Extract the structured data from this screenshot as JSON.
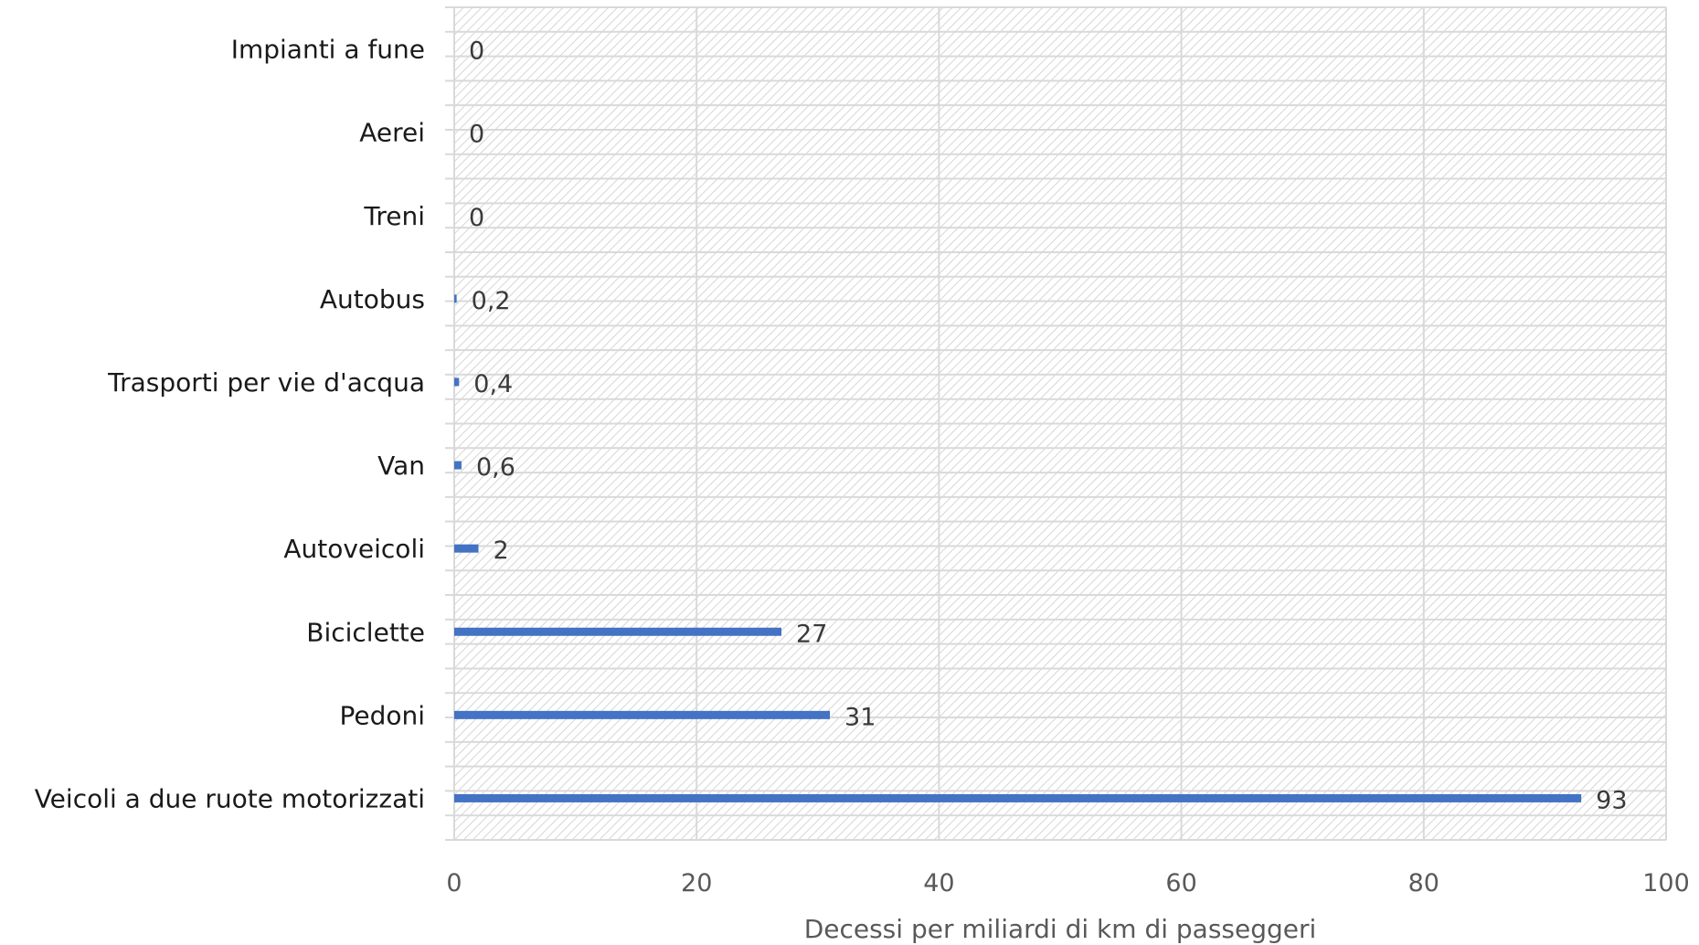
{
  "chart_data": {
    "type": "bar",
    "orientation": "horizontal",
    "categories": [
      "Veicoli a due ruote motorizzati",
      "Pedoni",
      "Biciclette",
      "Autoveicoli",
      "Van",
      "Trasporti per vie d'acqua",
      "Autobus",
      "Treni",
      "Aerei",
      "Impianti a fune"
    ],
    "values": [
      93,
      31,
      27,
      2,
      0.6,
      0.4,
      0.2,
      0,
      0,
      0
    ],
    "data_labels": [
      "93",
      "31",
      "27",
      "2",
      "0,6",
      "0,4",
      "0,2",
      "0",
      "0",
      "0"
    ],
    "xlabel": "Decessi per miliardi di km di passeggeri",
    "ylabel": "",
    "xlim": [
      0,
      100
    ],
    "xticks": [
      0,
      20,
      40,
      60,
      80,
      100
    ],
    "xtick_labels": [
      "0",
      "20",
      "40",
      "60",
      "80",
      "100"
    ],
    "bar_color": "#4472c4",
    "grid": true,
    "legend": "none"
  }
}
